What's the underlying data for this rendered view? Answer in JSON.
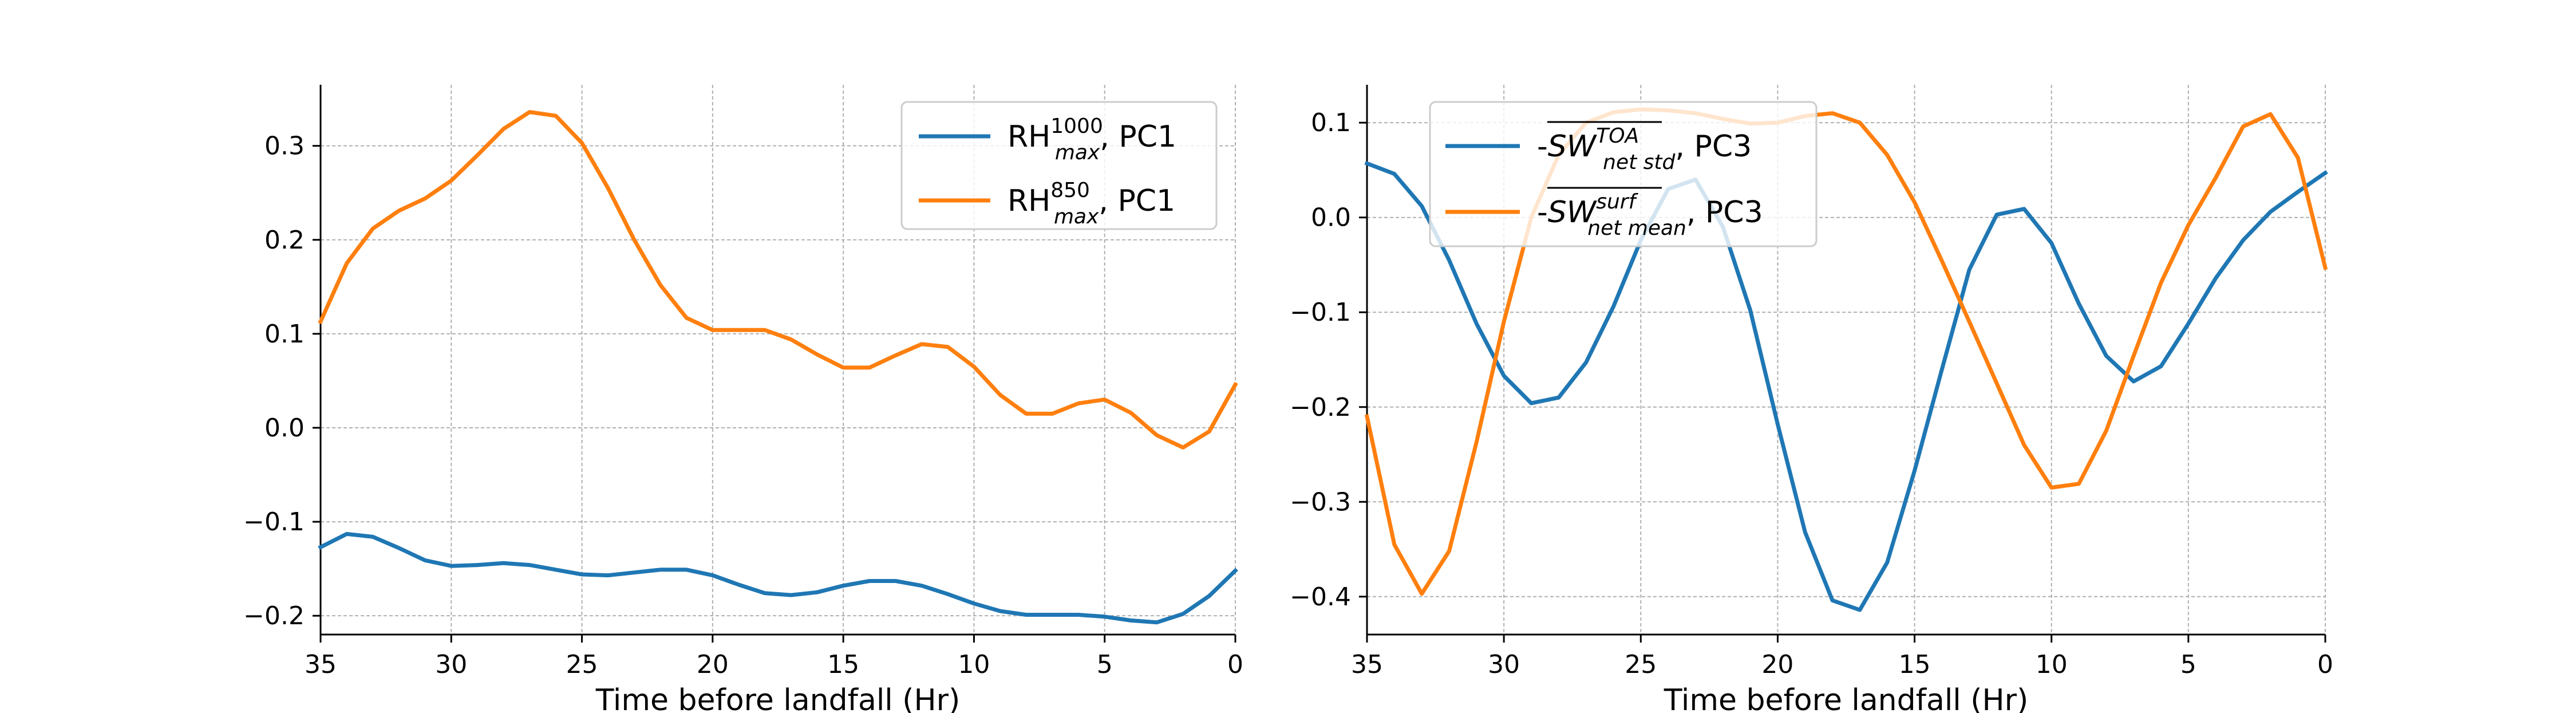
{
  "colors": {
    "blue": "#1f77b4",
    "orange": "#ff7f0e",
    "grid": "#b0b0b0",
    "axis": "#000000"
  },
  "chart_data": [
    {
      "type": "line",
      "xlabel": "Time before landfall (Hr)",
      "ylabel": "",
      "xlim": [
        35,
        0
      ],
      "ylim": [
        -0.22,
        0.365
      ],
      "x_ticks": [
        35,
        30,
        25,
        20,
        15,
        10,
        5,
        0
      ],
      "y_ticks": [
        -0.2,
        -0.1,
        0.0,
        0.1,
        0.2,
        0.3
      ],
      "y_tick_labels": [
        "−0.2",
        "−0.1",
        "0.0",
        "0.1",
        "0.2",
        "0.3"
      ],
      "grid": true,
      "legend_position": "top-right",
      "x": [
        35,
        34,
        33,
        32,
        31,
        30,
        29,
        28,
        27,
        26,
        25,
        24,
        23,
        22,
        21,
        20,
        19,
        18,
        17,
        16,
        15,
        14,
        13,
        12,
        11,
        10,
        9,
        8,
        7,
        6,
        5,
        4,
        3,
        2,
        1,
        0
      ],
      "series": [
        {
          "legend": {
            "base": "RH",
            "sup": "1000",
            "sub": "max",
            "tail": ", PC1"
          },
          "color": "#1f77b4",
          "values": [
            -0.127,
            -0.113,
            -0.116,
            -0.128,
            -0.141,
            -0.147,
            -0.146,
            -0.144,
            -0.146,
            -0.151,
            -0.156,
            -0.157,
            -0.154,
            -0.151,
            -0.151,
            -0.157,
            -0.167,
            -0.176,
            -0.178,
            -0.175,
            -0.168,
            -0.163,
            -0.163,
            -0.168,
            -0.177,
            -0.187,
            -0.195,
            -0.199,
            -0.199,
            -0.199,
            -0.201,
            -0.205,
            -0.207,
            -0.198,
            -0.179,
            -0.152
          ]
        },
        {
          "legend": {
            "base": "RH",
            "sup": "850",
            "sub": "max",
            "tail": ", PC1"
          },
          "color": "#ff7f0e",
          "values": [
            0.113,
            0.175,
            0.212,
            0.231,
            0.244,
            0.263,
            0.29,
            0.318,
            0.336,
            0.332,
            0.303,
            0.255,
            0.2,
            0.152,
            0.117,
            0.104,
            0.104,
            0.104,
            0.094,
            0.078,
            0.064,
            0.064,
            0.077,
            0.089,
            0.086,
            0.065,
            0.035,
            0.015,
            0.015,
            0.026,
            0.03,
            0.016,
            -0.008,
            -0.021,
            -0.004,
            0.046
          ]
        }
      ]
    },
    {
      "type": "line",
      "xlabel": "Time before landfall (Hr)",
      "ylabel": "",
      "xlim": [
        35,
        0
      ],
      "ylim": [
        -0.44,
        0.14
      ],
      "x_ticks": [
        35,
        30,
        25,
        20,
        15,
        10,
        5,
        0
      ],
      "y_ticks": [
        -0.4,
        -0.3,
        -0.2,
        -0.1,
        0.0,
        0.1
      ],
      "y_tick_labels": [
        "−0.4",
        "−0.3",
        "−0.2",
        "−0.1",
        "0.0",
        "0.1"
      ],
      "grid": true,
      "legend_position": "top-left",
      "x": [
        35,
        34,
        33,
        32,
        31,
        30,
        29,
        28,
        27,
        26,
        25,
        24,
        23,
        22,
        21,
        20,
        19,
        18,
        17,
        16,
        15,
        14,
        13,
        12,
        11,
        10,
        9,
        8,
        7,
        6,
        5,
        4,
        3,
        2,
        1,
        0
      ],
      "series": [
        {
          "legend": {
            "prefix": "-",
            "base": "SW",
            "sup": "TOA",
            "sub": "net std",
            "tail": ", PC3"
          },
          "color": "#1f77b4",
          "values": [
            0.057,
            0.046,
            0.012,
            -0.045,
            -0.112,
            -0.167,
            -0.196,
            -0.19,
            -0.153,
            -0.094,
            -0.024,
            0.03,
            0.04,
            -0.01,
            -0.098,
            -0.218,
            -0.332,
            -0.404,
            -0.414,
            -0.364,
            -0.267,
            -0.16,
            -0.055,
            0.003,
            0.009,
            -0.027,
            -0.091,
            -0.146,
            -0.173,
            -0.157,
            -0.112,
            -0.064,
            -0.024,
            0.006,
            0.027,
            0.047
          ]
        },
        {
          "legend": {
            "prefix": "-",
            "base": "SW",
            "sup": "surf",
            "sub": "net mean",
            "tail": ", PC3"
          },
          "color": "#ff7f0e",
          "values": [
            -0.21,
            -0.345,
            -0.397,
            -0.352,
            -0.237,
            -0.11,
            0.0,
            0.066,
            0.1,
            0.111,
            0.114,
            0.113,
            0.11,
            0.104,
            0.099,
            0.1,
            0.107,
            0.11,
            0.1,
            0.066,
            0.016,
            -0.046,
            -0.11,
            -0.175,
            -0.24,
            -0.285,
            -0.281,
            -0.225,
            -0.146,
            -0.069,
            -0.008,
            0.042,
            0.096,
            0.109,
            0.063,
            -0.053
          ]
        }
      ]
    }
  ]
}
